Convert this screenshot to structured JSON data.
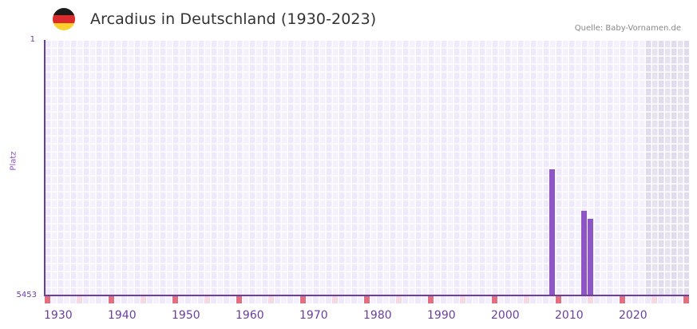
{
  "header": {
    "title": "Arcadius in Deutschland (1930-2023)",
    "source": "Quelle: Baby-Vornamen.de",
    "flag_colors": [
      "#1a1a1a",
      "#dd2a2a",
      "#fcd02c"
    ]
  },
  "chart_data": {
    "type": "bar",
    "title": "Arcadius in Deutschland (1930-2023)",
    "xlabel": "",
    "ylabel": "Platz",
    "y_inverted": true,
    "ylim": [
      1,
      5453
    ],
    "y_ticks": [
      "1",
      "5453"
    ],
    "x_ticks": [
      "1930",
      "1940",
      "1950",
      "1960",
      "1970",
      "1980",
      "1990",
      "2000",
      "2010",
      "2020"
    ],
    "x_range": [
      1928,
      2028
    ],
    "categories": [
      2007,
      2012,
      2013
    ],
    "values": [
      2761,
      3647,
      3817
    ],
    "series": [
      {
        "name": "Arcadius",
        "color": "#8e55c5",
        "points": [
          {
            "year": 2007,
            "rank": 2761
          },
          {
            "year": 2012,
            "rank": 3647
          },
          {
            "year": 2013,
            "rank": 3817
          }
        ]
      }
    ],
    "shaded_region_from_year": 2022,
    "grid": true,
    "legend": "none"
  },
  "colors": {
    "bar": "#8e55c5",
    "axis": "#6a3fa0",
    "grid_bg_a": "#efeafb",
    "grid_bg_b": "#f4f1fc",
    "shade": "#e3dff0",
    "marker_strong": "#e07080",
    "marker_light": "#f5d8e0"
  }
}
